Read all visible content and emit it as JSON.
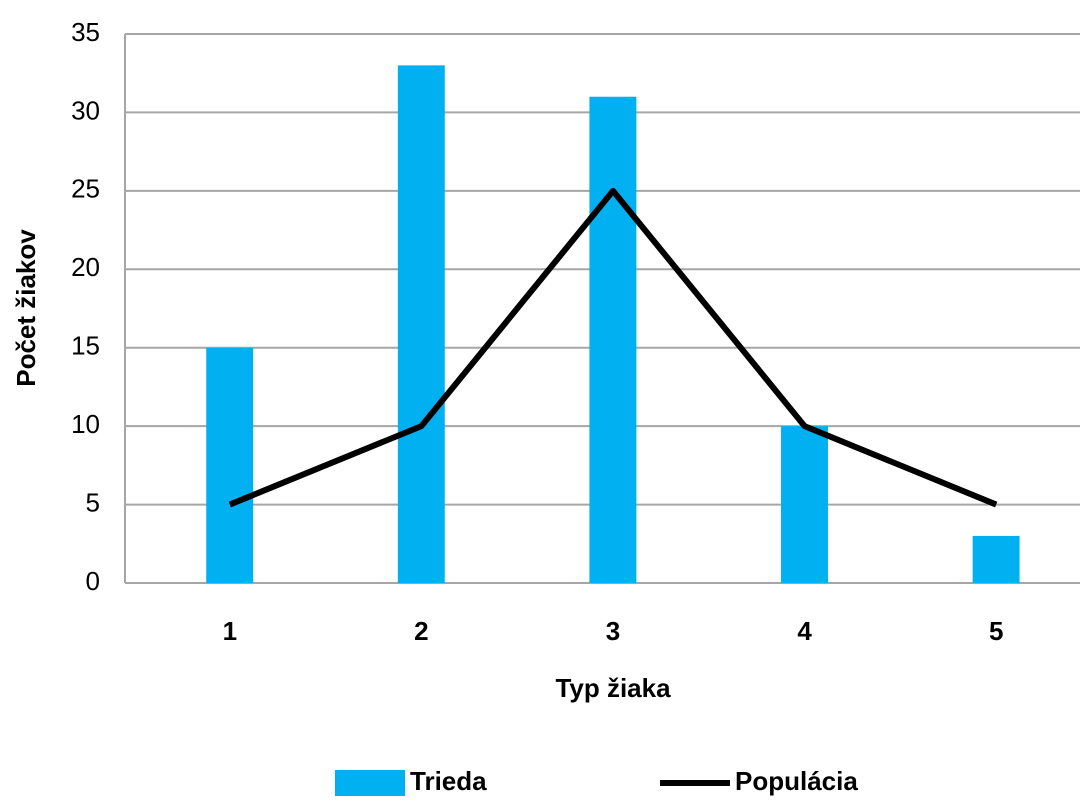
{
  "chart_data": {
    "type": "bar",
    "x_label": "Typ žiaka",
    "y_label": "Počet žiakov",
    "categories": [
      "1",
      "2",
      "3",
      "4",
      "5"
    ],
    "series": [
      {
        "name": "Trieda",
        "type": "bar",
        "color": "#00b0f0",
        "values": [
          15,
          33,
          31,
          10,
          3
        ]
      },
      {
        "name": "Populácia",
        "type": "line",
        "color": "#000000",
        "values": [
          5,
          10,
          25,
          10,
          5
        ]
      }
    ],
    "ylim": [
      0,
      35
    ],
    "yticks": [
      0,
      5,
      10,
      15,
      20,
      25,
      30,
      35
    ],
    "grid": true,
    "legend": "bottom"
  }
}
